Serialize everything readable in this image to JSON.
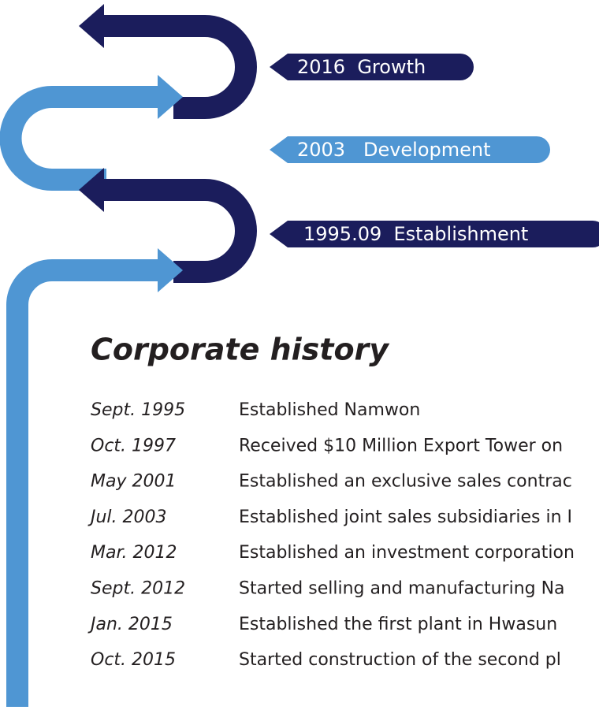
{
  "milestones": [
    "2016  Growth",
    "2003   Development",
    "1995.09  Establishment"
  ],
  "title": "Corporate history",
  "history": [
    [
      "Sept. 1995",
      "Established Namwon"
    ],
    [
      "Oct. 1997",
      "Received $10 Million Export Tower on"
    ],
    [
      "May 2001",
      "Established an exclusive sales contrac"
    ],
    [
      "Jul. 2003",
      "Established joint sales subsidiaries in I"
    ],
    [
      "Mar. 2012",
      "Established an investment corporation"
    ],
    [
      "Sept. 2012",
      "Started selling and manufacturing Na"
    ],
    [
      "Jan. 2015",
      "Established the first plant in Hwasun"
    ],
    [
      "Oct. 2015",
      "Started construction of the second pl"
    ]
  ]
}
